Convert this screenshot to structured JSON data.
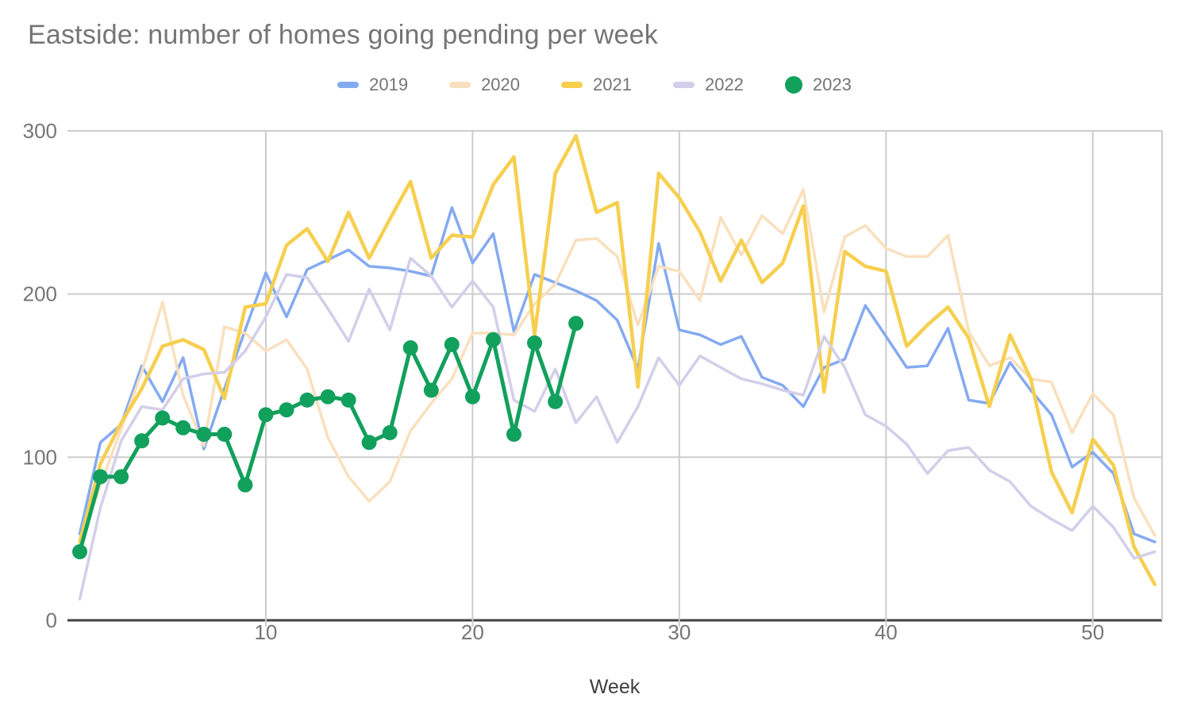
{
  "title": "Eastside: number of homes going pending per week",
  "chart_data": {
    "type": "line",
    "title": "Eastside: number of homes going pending per week",
    "xlabel": "Week",
    "ylabel": "",
    "x_ticks": [
      10,
      20,
      30,
      40,
      50
    ],
    "y_ticks": [
      0,
      100,
      200,
      300
    ],
    "xlim": [
      1,
      53
    ],
    "ylim": [
      0,
      300
    ],
    "grid": true,
    "legend_position": "top-center",
    "x": "week number, 1 through 53 (2023 series runs week 1 through 25)",
    "series": [
      {
        "name": "2019",
        "color": "#84aaf1",
        "marker": "none",
        "line_width": 3.5,
        "values": [
          53,
          109,
          120,
          156,
          134,
          161,
          105,
          142,
          178,
          213,
          186,
          215,
          221,
          227,
          217,
          216,
          214,
          211,
          253,
          219,
          237,
          177,
          212,
          207,
          202,
          196,
          184,
          154,
          231,
          178,
          175,
          169,
          174,
          149,
          144,
          131,
          155,
          160,
          193,
          174,
          155,
          156,
          179,
          135,
          133,
          158,
          141,
          126,
          94,
          103,
          90,
          53,
          48
        ]
      },
      {
        "name": "2020",
        "color": "#f9e0bd",
        "marker": "none",
        "line_width": 3.5,
        "values": [
          46,
          83,
          117,
          152,
          195,
          138,
          107,
          180,
          176,
          165,
          172,
          154,
          112,
          88,
          73,
          85,
          116,
          133,
          148,
          176,
          176,
          175,
          194,
          206,
          233,
          234,
          223,
          181,
          217,
          214,
          196,
          247,
          224,
          248,
          237,
          264,
          189,
          235,
          242,
          228,
          223,
          223,
          236,
          177,
          156,
          161,
          148,
          146,
          115,
          139,
          126,
          75,
          52
        ]
      },
      {
        "name": "2021",
        "color": "#f6cf4f",
        "marker": "none",
        "line_width": 4.5,
        "values": [
          48,
          96,
          121,
          142,
          168,
          172,
          166,
          136,
          192,
          194,
          230,
          240,
          220,
          250,
          222,
          246,
          269,
          222,
          236,
          235,
          267,
          284,
          175,
          274,
          297,
          250,
          256,
          143,
          274,
          259,
          238,
          208,
          233,
          207,
          219,
          254,
          140,
          226,
          217,
          214,
          168,
          181,
          192,
          173,
          131,
          175,
          148,
          91,
          66,
          111,
          95,
          45,
          22
        ]
      },
      {
        "name": "2022",
        "color": "#d3cee9",
        "marker": "none",
        "line_width": 3.5,
        "values": [
          13,
          69,
          110,
          131,
          129,
          148,
          151,
          152,
          165,
          186,
          212,
          210,
          191,
          171,
          203,
          178,
          222,
          211,
          192,
          208,
          192,
          135,
          128,
          154,
          121,
          137,
          109,
          131,
          161,
          144,
          162,
          155,
          148,
          145,
          141,
          138,
          174,
          155,
          126,
          119,
          108,
          90,
          104,
          106,
          92,
          85,
          70,
          62,
          55,
          70,
          57,
          38,
          42
        ]
      },
      {
        "name": "2023",
        "color": "#12a05d",
        "marker": "circle",
        "marker_radius": 9.5,
        "line_width": 5,
        "values": [
          42,
          88,
          88,
          110,
          124,
          118,
          114,
          114,
          83,
          126,
          129,
          135,
          137,
          135,
          109,
          115,
          167,
          141,
          169,
          137,
          172,
          114,
          170,
          134,
          182
        ]
      }
    ]
  },
  "axis": {
    "x_label": "Week",
    "x_tick_labels": [
      "10",
      "20",
      "30",
      "40",
      "50"
    ],
    "y_tick_labels": [
      "0",
      "100",
      "200",
      "300"
    ]
  },
  "colors": {
    "background": "#ffffff",
    "title_text": "#757575",
    "tick_text": "#757575",
    "axis_label_text": "#3f3f3f",
    "gridline": "#cccccc",
    "baseline": "#424242"
  }
}
